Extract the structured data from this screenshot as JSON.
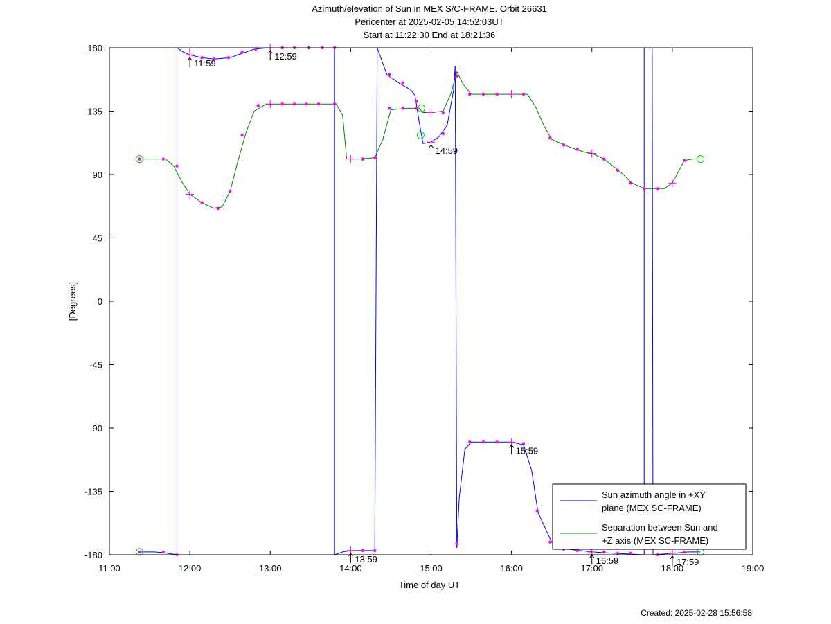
{
  "chart_data": {
    "type": "line",
    "title": [
      "Azimuth/elevation of Sun in MEX S/C-FRAME.  Orbit 26631",
      "Pericenter at 2025-02-05 14:52:03UT",
      "Start at 11:22:30 End at 18:21:36"
    ],
    "xlabel": "Time of day UT",
    "ylabel": "[Degrees]",
    "xlim": [
      11,
      19
    ],
    "ylim": [
      -180,
      180
    ],
    "x_tick_values": [
      11,
      12,
      13,
      14,
      15,
      16,
      17,
      18,
      19
    ],
    "x_tick_labels": [
      "11:00",
      "12:00",
      "13:00",
      "14:00",
      "15:00",
      "16:00",
      "17:00",
      "18:00",
      "19:00"
    ],
    "y_tick_values": [
      180,
      135,
      90,
      45,
      0,
      -45,
      -90,
      -135,
      -180
    ],
    "y_tick_labels": [
      "180",
      "135",
      "90",
      "45",
      "0",
      "-45",
      "-90",
      "-135",
      "-180"
    ],
    "grid": false,
    "legend_position": "bottom-right",
    "created_label": "Created: 2025-02-28 15:56:58",
    "series": [
      {
        "name": "Sun azimuth angle in +XY plane (MEX SC-FRAME)",
        "legend_lines": [
          "Sun azimuth angle in +XY",
          "plane (MEX SC-FRAME)"
        ],
        "color": "#0000ff",
        "segments": [
          [
            [
              11.375,
              -178
            ],
            [
              11.55,
              -178
            ],
            [
              11.67,
              -178.5
            ],
            [
              11.84,
              -180
            ]
          ],
          [
            [
              11.84,
              180
            ],
            [
              11.92,
              177
            ],
            [
              12.0,
              175
            ],
            [
              12.15,
              173
            ],
            [
              12.3,
              172
            ],
            [
              12.5,
              173
            ],
            [
              12.65,
              176
            ],
            [
              12.8,
              179
            ],
            [
              12.99,
              180
            ]
          ],
          [
            [
              12.99,
              180
            ],
            [
              13.3,
              180
            ],
            [
              13.8,
              180
            ]
          ],
          [
            [
              13.8,
              -180
            ],
            [
              13.9,
              -178
            ],
            [
              14.0,
              -177
            ],
            [
              14.15,
              -177
            ],
            [
              14.3,
              -177
            ]
          ],
          [
            [
              14.33,
              180
            ],
            [
              14.45,
              161
            ],
            [
              14.6,
              155
            ],
            [
              14.75,
              150
            ],
            [
              14.8,
              146
            ],
            [
              14.85,
              128
            ],
            [
              14.9,
              112
            ],
            [
              15.0,
              113
            ],
            [
              15.1,
              117
            ],
            [
              15.2,
              125
            ],
            [
              15.28,
              150
            ],
            [
              15.3,
              167
            ]
          ],
          [
            [
              15.32,
              -175
            ],
            [
              15.35,
              -140
            ],
            [
              15.42,
              -105
            ],
            [
              15.5,
              -100
            ],
            [
              16.0,
              -100
            ],
            [
              16.15,
              -102
            ],
            [
              16.25,
              -120
            ],
            [
              16.33,
              -150
            ],
            [
              16.5,
              -171
            ],
            [
              16.7,
              -176
            ],
            [
              17.0,
              -178
            ],
            [
              17.3,
              -179
            ],
            [
              17.65,
              -180
            ]
          ],
          [
            [
              17.65,
              180
            ],
            [
              17.75,
              180
            ]
          ],
          [
            [
              17.76,
              -180
            ],
            [
              18.0,
              -179
            ],
            [
              18.2,
              -178
            ],
            [
              18.35,
              -178
            ]
          ]
        ]
      },
      {
        "name": "Separation between Sun and +Z axis (MEX SC-FRAME)",
        "legend_lines": [
          "Separation between Sun and",
          "+Z axis (MEX SC-FRAME)"
        ],
        "color": "#007f00",
        "segments": [
          [
            [
              11.375,
              101
            ],
            [
              11.55,
              101
            ],
            [
              11.7,
              101
            ],
            [
              11.8,
              96
            ],
            [
              11.9,
              85
            ],
            [
              12.0,
              76
            ],
            [
              12.15,
              70
            ],
            [
              12.3,
              66
            ],
            [
              12.4,
              67
            ],
            [
              12.5,
              78
            ],
            [
              12.6,
              100
            ],
            [
              12.7,
              120
            ],
            [
              12.8,
              135
            ],
            [
              12.95,
              140
            ],
            [
              13.2,
              140
            ],
            [
              13.5,
              140
            ],
            [
              13.82,
              140
            ],
            [
              13.9,
              132
            ],
            [
              13.95,
              101
            ],
            [
              14.1,
              101
            ],
            [
              14.3,
              102
            ],
            [
              14.4,
              115
            ],
            [
              14.5,
              136
            ],
            [
              14.7,
              137
            ],
            [
              14.85,
              137
            ],
            [
              14.9,
              134
            ],
            [
              15.0,
              134
            ],
            [
              15.15,
              135
            ],
            [
              15.25,
              148
            ],
            [
              15.32,
              163
            ],
            [
              15.4,
              154
            ],
            [
              15.5,
              147
            ],
            [
              15.7,
              147
            ],
            [
              16.0,
              147
            ],
            [
              16.2,
              147
            ],
            [
              16.3,
              138
            ],
            [
              16.4,
              125
            ],
            [
              16.5,
              115
            ],
            [
              16.7,
              110
            ],
            [
              16.9,
              106
            ],
            [
              17.0,
              105
            ],
            [
              17.15,
              101
            ],
            [
              17.35,
              92
            ],
            [
              17.5,
              84
            ],
            [
              17.65,
              80
            ],
            [
              17.9,
              80
            ],
            [
              18.0,
              84
            ],
            [
              18.15,
              100
            ],
            [
              18.25,
              101
            ],
            [
              18.35,
              101
            ]
          ]
        ]
      }
    ],
    "markers": [
      {
        "x": 11.375,
        "y": 101
      },
      {
        "x": 11.67,
        "y": 101
      },
      {
        "x": 11.84,
        "y": 96
      },
      {
        "x": 12.15,
        "y": 70
      },
      {
        "x": 12.35,
        "y": 66
      },
      {
        "x": 12.5,
        "y": 78
      },
      {
        "x": 12.65,
        "y": 118
      },
      {
        "x": 12.85,
        "y": 139
      },
      {
        "x": 13.15,
        "y": 140
      },
      {
        "x": 13.3,
        "y": 140
      },
      {
        "x": 13.45,
        "y": 140
      },
      {
        "x": 13.6,
        "y": 140
      },
      {
        "x": 13.8,
        "y": 140
      },
      {
        "x": 14.15,
        "y": 101
      },
      {
        "x": 14.3,
        "y": 102
      },
      {
        "x": 14.48,
        "y": 137
      },
      {
        "x": 14.65,
        "y": 137
      },
      {
        "x": 14.82,
        "y": 137
      },
      {
        "x": 15.15,
        "y": 134
      },
      {
        "x": 15.32,
        "y": 160
      },
      {
        "x": 15.48,
        "y": 147
      },
      {
        "x": 15.65,
        "y": 147
      },
      {
        "x": 15.82,
        "y": 147
      },
      {
        "x": 16.15,
        "y": 147
      },
      {
        "x": 16.48,
        "y": 116
      },
      {
        "x": 16.65,
        "y": 111
      },
      {
        "x": 16.82,
        "y": 108
      },
      {
        "x": 17.15,
        "y": 101
      },
      {
        "x": 17.32,
        "y": 93
      },
      {
        "x": 17.48,
        "y": 84
      },
      {
        "x": 17.65,
        "y": 80
      },
      {
        "x": 17.82,
        "y": 80
      },
      {
        "x": 18.15,
        "y": 100
      },
      {
        "x": 11.375,
        "y": -178
      },
      {
        "x": 11.67,
        "y": -178
      },
      {
        "x": 11.84,
        "y": -180
      },
      {
        "x": 12.15,
        "y": 173
      },
      {
        "x": 12.3,
        "y": 172
      },
      {
        "x": 12.48,
        "y": 173
      },
      {
        "x": 12.65,
        "y": 177
      },
      {
        "x": 12.82,
        "y": 179
      },
      {
        "x": 13.15,
        "y": 180
      },
      {
        "x": 13.3,
        "y": 180
      },
      {
        "x": 13.48,
        "y": 180
      },
      {
        "x": 13.65,
        "y": 180
      },
      {
        "x": 13.8,
        "y": 180
      },
      {
        "x": 14.15,
        "y": -177
      },
      {
        "x": 14.3,
        "y": -177
      },
      {
        "x": 14.48,
        "y": 161
      },
      {
        "x": 14.65,
        "y": 155
      },
      {
        "x": 14.82,
        "y": 142
      },
      {
        "x": 15.15,
        "y": 119
      },
      {
        "x": 15.32,
        "y": -172
      },
      {
        "x": 15.48,
        "y": -100
      },
      {
        "x": 15.65,
        "y": -100
      },
      {
        "x": 15.82,
        "y": -100
      },
      {
        "x": 16.15,
        "y": -101
      },
      {
        "x": 16.32,
        "y": -149
      },
      {
        "x": 16.48,
        "y": -171
      },
      {
        "x": 16.65,
        "y": -176
      },
      {
        "x": 16.82,
        "y": -177
      },
      {
        "x": 17.15,
        "y": -178
      },
      {
        "x": 17.32,
        "y": -179
      },
      {
        "x": 17.48,
        "y": -179
      },
      {
        "x": 17.82,
        "y": -180
      },
      {
        "x": 18.15,
        "y": -178
      }
    ],
    "hour_crosses": [
      {
        "x": 12.0,
        "y": 76
      },
      {
        "x": 13.0,
        "y": 140
      },
      {
        "x": 14.0,
        "y": 101
      },
      {
        "x": 15.0,
        "y": 134
      },
      {
        "x": 16.0,
        "y": 147
      },
      {
        "x": 17.0,
        "y": 105
      },
      {
        "x": 18.0,
        "y": 84
      },
      {
        "x": 12.0,
        "y": 175
      },
      {
        "x": 13.0,
        "y": 180
      },
      {
        "x": 14.0,
        "y": -177
      },
      {
        "x": 15.0,
        "y": 113
      },
      {
        "x": 16.0,
        "y": -100
      },
      {
        "x": 17.0,
        "y": -178
      },
      {
        "x": 18.0,
        "y": -179
      }
    ],
    "circles": [
      {
        "x": 11.375,
        "y": 101
      },
      {
        "x": 11.375,
        "y": -178
      },
      {
        "x": 18.35,
        "y": 101
      },
      {
        "x": 18.35,
        "y": -178
      },
      {
        "x": 14.88,
        "y": 137
      },
      {
        "x": 14.87,
        "y": 118
      }
    ],
    "time_annotations": [
      {
        "x": 12.0,
        "y": 175,
        "label": "11:59"
      },
      {
        "x": 13.0,
        "y": 180,
        "label": "12:59"
      },
      {
        "x": 14.0,
        "y": -177,
        "label": "13:59"
      },
      {
        "x": 15.0,
        "y": 113,
        "label": "14:59"
      },
      {
        "x": 16.0,
        "y": -100,
        "label": "15:59"
      },
      {
        "x": 17.0,
        "y": -178,
        "label": "16:59"
      },
      {
        "x": 18.0,
        "y": -179,
        "label": "17:59"
      }
    ]
  }
}
